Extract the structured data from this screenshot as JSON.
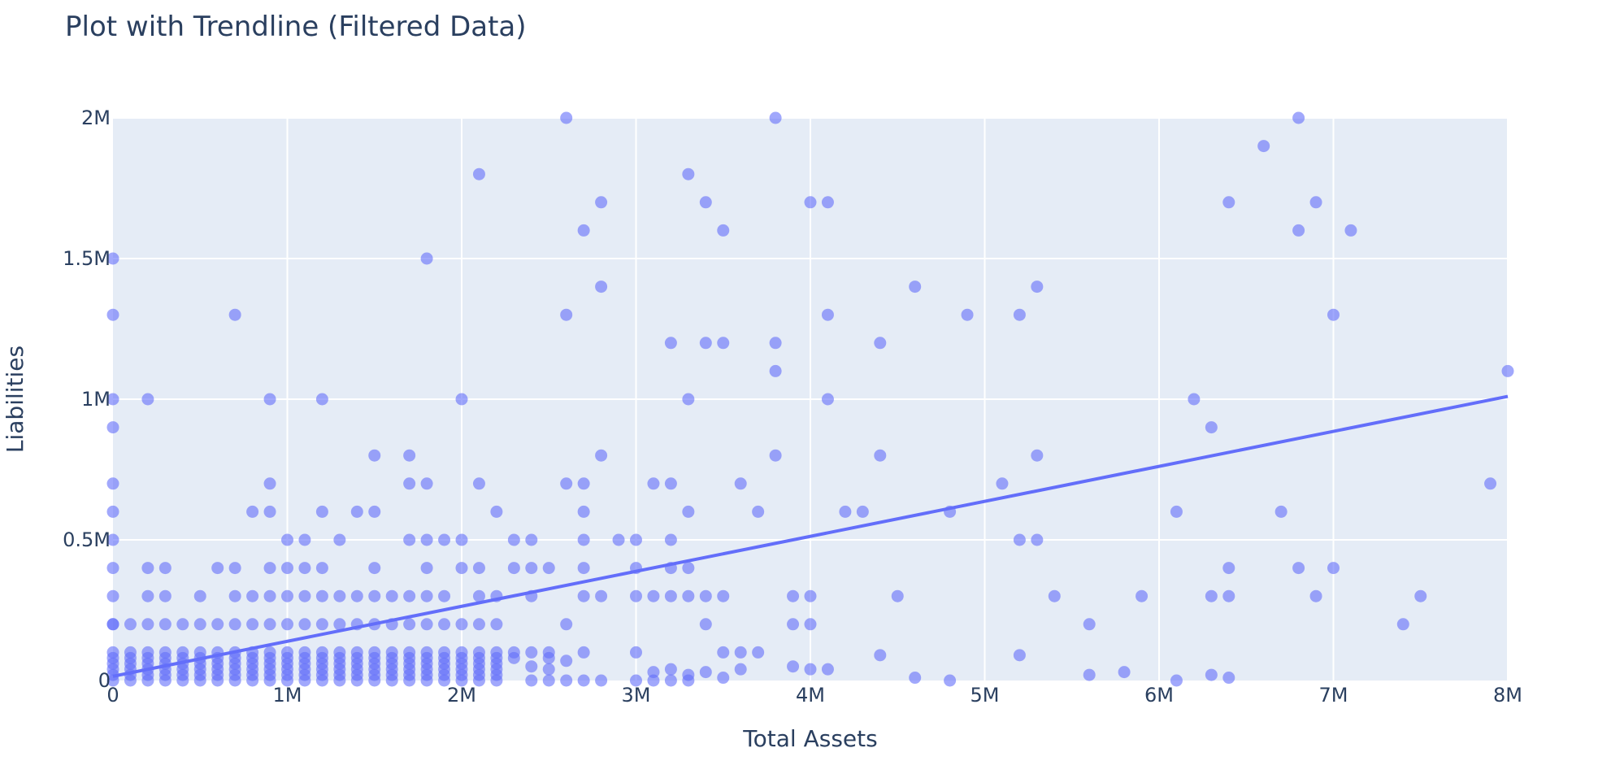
{
  "chart_data": {
    "type": "scatter",
    "title": "Plot with Trendline (Filtered Data)",
    "xlabel": "Total Assets",
    "ylabel": "Liabilities",
    "xlim": [
      0,
      8000000
    ],
    "ylim": [
      0,
      2000000
    ],
    "x_ticks": [
      0,
      1000000,
      2000000,
      3000000,
      4000000,
      5000000,
      6000000,
      7000000,
      8000000
    ],
    "x_tick_labels": [
      "0",
      "1M",
      "2M",
      "3M",
      "4M",
      "5M",
      "6M",
      "7M",
      "8M"
    ],
    "y_ticks": [
      0,
      500000,
      1000000,
      1500000,
      2000000
    ],
    "y_tick_labels": [
      "0",
      "0.5M",
      "1M",
      "1.5M",
      "2M"
    ],
    "grid": true,
    "marker_color": "#636efa",
    "background_color": "#e5ecf6",
    "trendline": {
      "x": [
        0,
        8000000
      ],
      "y": [
        15000,
        1010000
      ]
    },
    "clusters": [
      {
        "x_from": 0,
        "x_to": 2200000,
        "x_step": 100000,
        "y_from": 0,
        "y_to": 100000,
        "y_step": 20000
      },
      {
        "x_from": 0,
        "x_to": 2000000,
        "x_step": 100000,
        "y_from": 200000,
        "y_to": 200000,
        "y_step": 100000
      }
    ],
    "points": [
      [
        0,
        1500000
      ],
      [
        0,
        1300000
      ],
      [
        0,
        1000000
      ],
      [
        0,
        900000
      ],
      [
        0,
        700000
      ],
      [
        0,
        600000
      ],
      [
        0,
        500000
      ],
      [
        0,
        400000
      ],
      [
        0,
        300000
      ],
      [
        0,
        200000
      ],
      [
        200000,
        1000000
      ],
      [
        200000,
        400000
      ],
      [
        200000,
        300000
      ],
      [
        300000,
        400000
      ],
      [
        300000,
        300000
      ],
      [
        500000,
        300000
      ],
      [
        600000,
        400000
      ],
      [
        700000,
        1300000
      ],
      [
        700000,
        400000
      ],
      [
        700000,
        300000
      ],
      [
        800000,
        600000
      ],
      [
        800000,
        300000
      ],
      [
        900000,
        1000000
      ],
      [
        900000,
        700000
      ],
      [
        900000,
        600000
      ],
      [
        900000,
        400000
      ],
      [
        900000,
        300000
      ],
      [
        1000000,
        500000
      ],
      [
        1000000,
        400000
      ],
      [
        1000000,
        300000
      ],
      [
        1100000,
        500000
      ],
      [
        1100000,
        400000
      ],
      [
        1100000,
        300000
      ],
      [
        1200000,
        1000000
      ],
      [
        1200000,
        600000
      ],
      [
        1200000,
        400000
      ],
      [
        1200000,
        300000
      ],
      [
        1300000,
        500000
      ],
      [
        1300000,
        300000
      ],
      [
        1400000,
        600000
      ],
      [
        1400000,
        300000
      ],
      [
        1500000,
        800000
      ],
      [
        1500000,
        600000
      ],
      [
        1500000,
        400000
      ],
      [
        1500000,
        300000
      ],
      [
        1600000,
        300000
      ],
      [
        1700000,
        800000
      ],
      [
        1700000,
        700000
      ],
      [
        1700000,
        500000
      ],
      [
        1700000,
        300000
      ],
      [
        1800000,
        1500000
      ],
      [
        1800000,
        700000
      ],
      [
        1800000,
        500000
      ],
      [
        1800000,
        400000
      ],
      [
        1800000,
        300000
      ],
      [
        1900000,
        500000
      ],
      [
        1900000,
        300000
      ],
      [
        2000000,
        1000000
      ],
      [
        2000000,
        500000
      ],
      [
        2000000,
        400000
      ],
      [
        2100000,
        1800000
      ],
      [
        2100000,
        700000
      ],
      [
        2100000,
        400000
      ],
      [
        2100000,
        300000
      ],
      [
        2100000,
        200000
      ],
      [
        2200000,
        600000
      ],
      [
        2200000,
        300000
      ],
      [
        2200000,
        200000
      ],
      [
        2300000,
        500000
      ],
      [
        2300000,
        400000
      ],
      [
        2300000,
        100000
      ],
      [
        2300000,
        80000
      ],
      [
        2400000,
        500000
      ],
      [
        2400000,
        400000
      ],
      [
        2400000,
        300000
      ],
      [
        2400000,
        100000
      ],
      [
        2400000,
        50000
      ],
      [
        2400000,
        0
      ],
      [
        2500000,
        400000
      ],
      [
        2500000,
        100000
      ],
      [
        2500000,
        80000
      ],
      [
        2500000,
        40000
      ],
      [
        2500000,
        0
      ],
      [
        2600000,
        2000000
      ],
      [
        2600000,
        1300000
      ],
      [
        2600000,
        700000
      ],
      [
        2600000,
        200000
      ],
      [
        2600000,
        70000
      ],
      [
        2600000,
        0
      ],
      [
        2700000,
        1600000
      ],
      [
        2700000,
        700000
      ],
      [
        2700000,
        600000
      ],
      [
        2700000,
        500000
      ],
      [
        2700000,
        400000
      ],
      [
        2700000,
        300000
      ],
      [
        2700000,
        100000
      ],
      [
        2700000,
        0
      ],
      [
        2800000,
        1700000
      ],
      [
        2800000,
        1400000
      ],
      [
        2800000,
        800000
      ],
      [
        2800000,
        300000
      ],
      [
        2800000,
        0
      ],
      [
        2900000,
        500000
      ],
      [
        3000000,
        500000
      ],
      [
        3000000,
        400000
      ],
      [
        3000000,
        300000
      ],
      [
        3000000,
        100000
      ],
      [
        3000000,
        0
      ],
      [
        3100000,
        700000
      ],
      [
        3100000,
        300000
      ],
      [
        3100000,
        30000
      ],
      [
        3100000,
        0
      ],
      [
        3200000,
        1200000
      ],
      [
        3200000,
        700000
      ],
      [
        3200000,
        500000
      ],
      [
        3200000,
        400000
      ],
      [
        3200000,
        300000
      ],
      [
        3200000,
        40000
      ],
      [
        3200000,
        0
      ],
      [
        3300000,
        1800000
      ],
      [
        3300000,
        1000000
      ],
      [
        3300000,
        600000
      ],
      [
        3300000,
        400000
      ],
      [
        3300000,
        300000
      ],
      [
        3300000,
        20000
      ],
      [
        3300000,
        0
      ],
      [
        3400000,
        1700000
      ],
      [
        3400000,
        1200000
      ],
      [
        3400000,
        300000
      ],
      [
        3400000,
        200000
      ],
      [
        3400000,
        30000
      ],
      [
        3500000,
        1600000
      ],
      [
        3500000,
        1200000
      ],
      [
        3500000,
        300000
      ],
      [
        3500000,
        100000
      ],
      [
        3500000,
        10000
      ],
      [
        3600000,
        700000
      ],
      [
        3600000,
        100000
      ],
      [
        3600000,
        40000
      ],
      [
        3700000,
        600000
      ],
      [
        3700000,
        100000
      ],
      [
        3800000,
        2000000
      ],
      [
        3800000,
        1200000
      ],
      [
        3800000,
        1100000
      ],
      [
        3800000,
        800000
      ],
      [
        3900000,
        300000
      ],
      [
        3900000,
        200000
      ],
      [
        3900000,
        50000
      ],
      [
        4000000,
        1700000
      ],
      [
        4000000,
        300000
      ],
      [
        4000000,
        200000
      ],
      [
        4000000,
        40000
      ],
      [
        4100000,
        1700000
      ],
      [
        4100000,
        1300000
      ],
      [
        4100000,
        1000000
      ],
      [
        4100000,
        40000
      ],
      [
        4200000,
        600000
      ],
      [
        4300000,
        600000
      ],
      [
        4400000,
        1200000
      ],
      [
        4400000,
        800000
      ],
      [
        4400000,
        90000
      ],
      [
        4500000,
        300000
      ],
      [
        4600000,
        1400000
      ],
      [
        4600000,
        10000
      ],
      [
        4800000,
        600000
      ],
      [
        4800000,
        0
      ],
      [
        4900000,
        1300000
      ],
      [
        5100000,
        700000
      ],
      [
        5200000,
        1300000
      ],
      [
        5200000,
        500000
      ],
      [
        5200000,
        90000
      ],
      [
        5300000,
        1400000
      ],
      [
        5300000,
        800000
      ],
      [
        5300000,
        500000
      ],
      [
        5400000,
        300000
      ],
      [
        5600000,
        200000
      ],
      [
        5600000,
        20000
      ],
      [
        5800000,
        30000
      ],
      [
        5900000,
        300000
      ],
      [
        6100000,
        600000
      ],
      [
        6100000,
        0
      ],
      [
        6200000,
        1000000
      ],
      [
        6300000,
        900000
      ],
      [
        6300000,
        300000
      ],
      [
        6300000,
        20000
      ],
      [
        6400000,
        1700000
      ],
      [
        6400000,
        400000
      ],
      [
        6400000,
        300000
      ],
      [
        6400000,
        10000
      ],
      [
        6600000,
        1900000
      ],
      [
        6700000,
        600000
      ],
      [
        6800000,
        2000000
      ],
      [
        6800000,
        1600000
      ],
      [
        6800000,
        400000
      ],
      [
        6900000,
        1700000
      ],
      [
        6900000,
        300000
      ],
      [
        7000000,
        1300000
      ],
      [
        7000000,
        400000
      ],
      [
        7100000,
        1600000
      ],
      [
        7400000,
        200000
      ],
      [
        7500000,
        300000
      ],
      [
        7900000,
        700000
      ],
      [
        8000000,
        1100000
      ]
    ]
  }
}
